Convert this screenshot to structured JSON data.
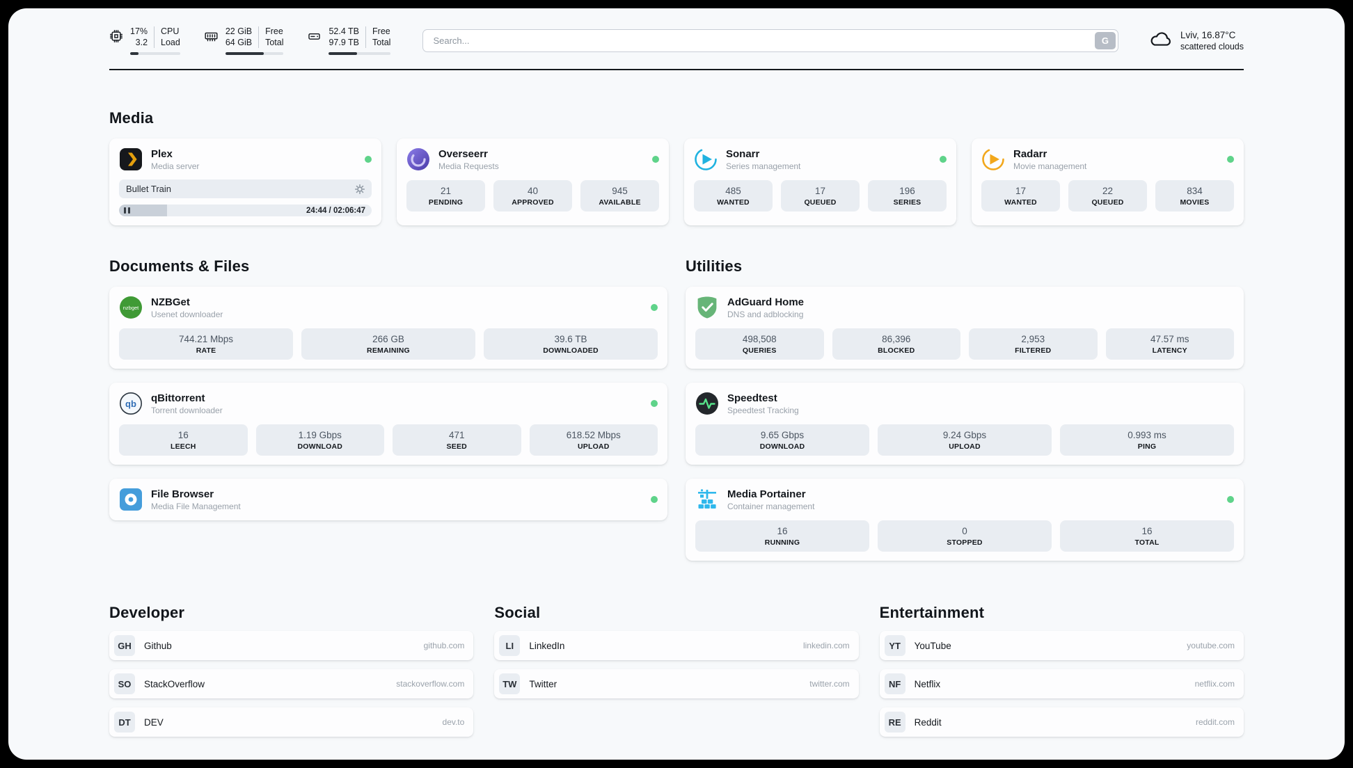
{
  "colors": {
    "status_green": "#5fd38a",
    "accent_dark": "#2e343b"
  },
  "header": {
    "cpu": {
      "value": "17%",
      "load": "3.2",
      "label_top": "CPU",
      "label_bottom": "Load",
      "bar_percent": 17
    },
    "memory": {
      "free": "22 GiB",
      "total": "64 GiB",
      "label_top": "Free",
      "label_bottom": "Total",
      "bar_percent": 66
    },
    "disk": {
      "free": "52.4 TB",
      "total": "97.9 TB",
      "label_top": "Free",
      "label_bottom": "Total",
      "bar_percent": 46
    },
    "search": {
      "placeholder": "Search...",
      "engine_label": "G"
    },
    "weather": {
      "location": "Lviv, 16.87°C",
      "condition": "scattered clouds"
    }
  },
  "sections": {
    "media": {
      "title": "Media",
      "apps": [
        {
          "name": "Plex",
          "subtitle": "Media server",
          "now_playing": "Bullet Train",
          "time": "24:44 / 02:06:47",
          "progress_percent": 19
        },
        {
          "name": "Overseerr",
          "subtitle": "Media Requests",
          "stats": [
            {
              "value": "21",
              "label": "PENDING"
            },
            {
              "value": "40",
              "label": "APPROVED"
            },
            {
              "value": "945",
              "label": "AVAILABLE"
            }
          ]
        },
        {
          "name": "Sonarr",
          "subtitle": "Series management",
          "stats": [
            {
              "value": "485",
              "label": "WANTED"
            },
            {
              "value": "17",
              "label": "QUEUED"
            },
            {
              "value": "196",
              "label": "SERIES"
            }
          ]
        },
        {
          "name": "Radarr",
          "subtitle": "Movie management",
          "stats": [
            {
              "value": "17",
              "label": "WANTED"
            },
            {
              "value": "22",
              "label": "QUEUED"
            },
            {
              "value": "834",
              "label": "MOVIES"
            }
          ]
        }
      ]
    },
    "documents": {
      "title": "Documents & Files",
      "apps": [
        {
          "name": "NZBGet",
          "subtitle": "Usenet downloader",
          "stats": [
            {
              "value": "744.21 Mbps",
              "label": "RATE"
            },
            {
              "value": "266 GB",
              "label": "REMAINING"
            },
            {
              "value": "39.6 TB",
              "label": "DOWNLOADED"
            }
          ]
        },
        {
          "name": "qBittorrent",
          "subtitle": "Torrent downloader",
          "stats": [
            {
              "value": "16",
              "label": "LEECH"
            },
            {
              "value": "1.19 Gbps",
              "label": "DOWNLOAD"
            },
            {
              "value": "471",
              "label": "SEED"
            },
            {
              "value": "618.52 Mbps",
              "label": "UPLOAD"
            }
          ]
        },
        {
          "name": "File Browser",
          "subtitle": "Media File Management",
          "stats": []
        }
      ]
    },
    "utilities": {
      "title": "Utilities",
      "apps": [
        {
          "name": "AdGuard Home",
          "subtitle": "DNS and adblocking",
          "stats": [
            {
              "value": "498,508",
              "label": "QUERIES"
            },
            {
              "value": "86,396",
              "label": "BLOCKED"
            },
            {
              "value": "2,953",
              "label": "FILTERED"
            },
            {
              "value": "47.57 ms",
              "label": "LATENCY"
            }
          ]
        },
        {
          "name": "Speedtest",
          "subtitle": "Speedtest Tracking",
          "stats": [
            {
              "value": "9.65 Gbps",
              "label": "DOWNLOAD"
            },
            {
              "value": "9.24 Gbps",
              "label": "UPLOAD"
            },
            {
              "value": "0.993 ms",
              "label": "PING"
            }
          ]
        },
        {
          "name": "Media Portainer",
          "subtitle": "Container management",
          "stats": [
            {
              "value": "16",
              "label": "RUNNING"
            },
            {
              "value": "0",
              "label": "STOPPED"
            },
            {
              "value": "16",
              "label": "TOTAL"
            }
          ]
        }
      ]
    },
    "developer": {
      "title": "Developer",
      "links": [
        {
          "abbr": "GH",
          "name": "Github",
          "url": "github.com"
        },
        {
          "abbr": "SO",
          "name": "StackOverflow",
          "url": "stackoverflow.com"
        },
        {
          "abbr": "DT",
          "name": "DEV",
          "url": "dev.to"
        }
      ]
    },
    "social": {
      "title": "Social",
      "links": [
        {
          "abbr": "LI",
          "name": "LinkedIn",
          "url": "linkedin.com"
        },
        {
          "abbr": "TW",
          "name": "Twitter",
          "url": "twitter.com"
        }
      ]
    },
    "entertainment": {
      "title": "Entertainment",
      "links": [
        {
          "abbr": "YT",
          "name": "YouTube",
          "url": "youtube.com"
        },
        {
          "abbr": "NF",
          "name": "Netflix",
          "url": "netflix.com"
        },
        {
          "abbr": "RE",
          "name": "Reddit",
          "url": "reddit.com"
        }
      ]
    }
  }
}
